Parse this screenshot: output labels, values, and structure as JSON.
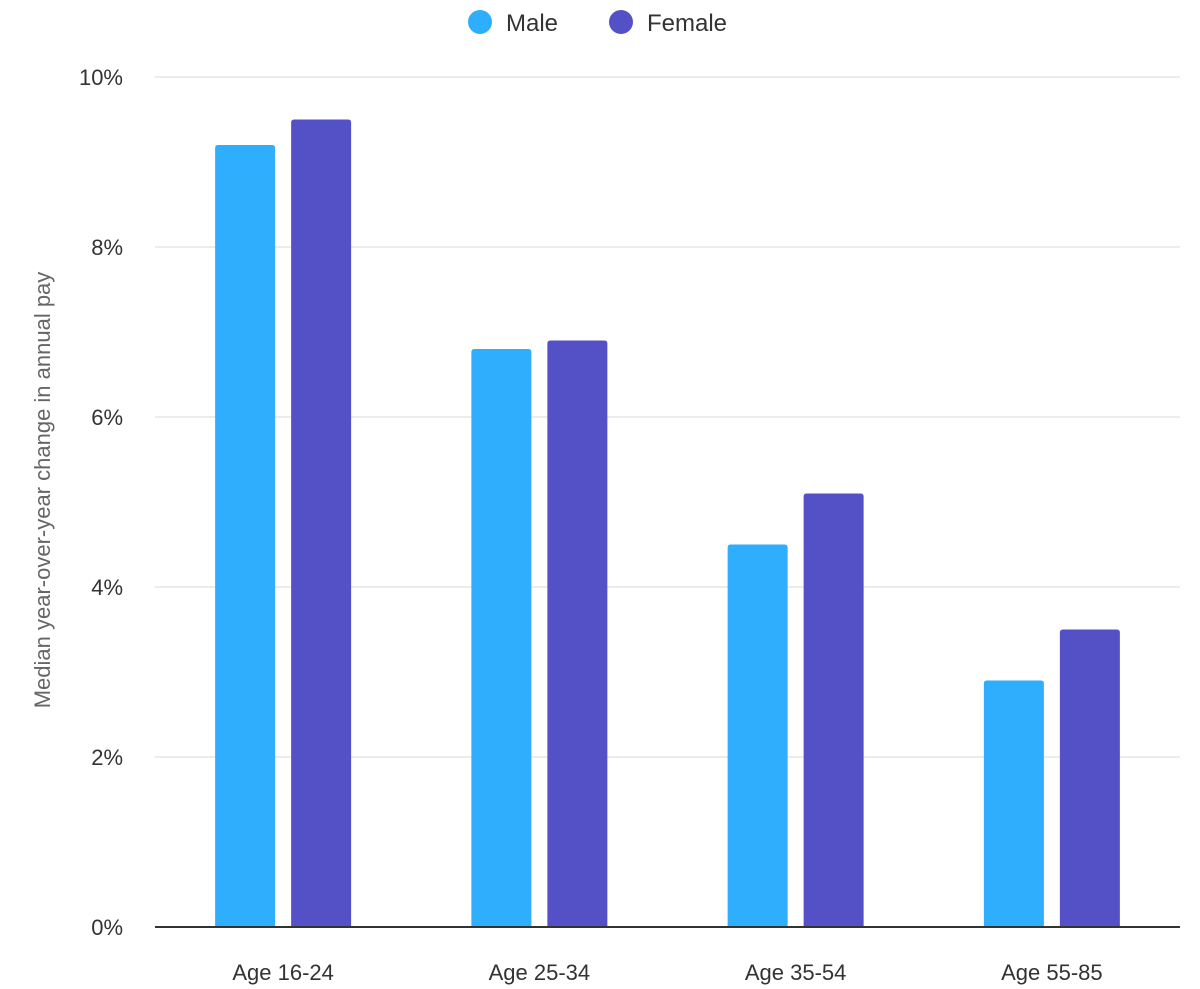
{
  "chart_data": {
    "type": "bar",
    "categories": [
      "Age 16-24",
      "Age 25-34",
      "Age 35-54",
      "Age 55-85"
    ],
    "series": [
      {
        "name": "Male",
        "values": [
          9.2,
          6.8,
          4.5,
          2.9
        ],
        "color": "#2eaefc"
      },
      {
        "name": "Female",
        "values": [
          9.5,
          6.9,
          5.1,
          3.5
        ],
        "color": "#5451c6"
      }
    ],
    "title": "",
    "xlabel": "",
    "ylabel": "Median year-over-year change in annual pay",
    "ylim": [
      0,
      10
    ],
    "yticks": [
      0,
      2,
      4,
      6,
      8,
      10
    ],
    "ytick_labels": [
      "0%",
      "2%",
      "4%",
      "6%",
      "8%",
      "10%"
    ],
    "grid": true,
    "legend_position": "top-center"
  }
}
